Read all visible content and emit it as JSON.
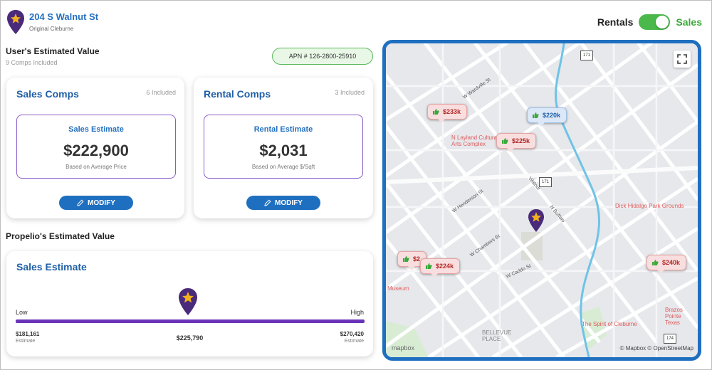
{
  "header": {
    "address": "204 S Walnut St",
    "subtitle": "Original Cleburne"
  },
  "toggle": {
    "left_label": "Rentals",
    "right_label": "Sales",
    "state": "sales"
  },
  "user_estimate": {
    "title": "User's Estimated Value",
    "comps_included": "9 Comps Included",
    "apn": "APN # 126-2800-25910"
  },
  "sales_comps": {
    "title": "Sales Comps",
    "count": "6 Included",
    "estimate_label": "Sales Estimate",
    "estimate_value": "$222,900",
    "basis": "Based on Average Price",
    "modify_label": "MODIFY"
  },
  "rental_comps": {
    "title": "Rental Comps",
    "count": "3 Included",
    "estimate_label": "Rental Estimate",
    "estimate_value": "$2,031",
    "basis": "Based on Average $/Sqft",
    "modify_label": "MODIFY"
  },
  "propelio": {
    "title": "Propelio's Estimated Value",
    "card_title": "Sales Estimate",
    "low_label": "Low",
    "high_label": "High",
    "low_value": "$181,161",
    "low_sub": "Estimate",
    "mid_value": "$225,790",
    "high_value": "$270,420",
    "high_sub": "Estimate"
  },
  "map": {
    "markers": [
      {
        "label": "$233k",
        "type": "sale"
      },
      {
        "label": "$220k",
        "type": "rent"
      },
      {
        "label": "$225k",
        "type": "sale"
      },
      {
        "label": "$2",
        "type": "sale"
      },
      {
        "label": "$224k",
        "type": "sale"
      },
      {
        "label": "$240k",
        "type": "sale"
      }
    ],
    "labels": {
      "arts": "N Layland Cultural Arts Complex",
      "park": "Dick Hidalgo Park Grounds",
      "garden": "The Spirit of Cleburne",
      "place1": "BELLEVUE PLACE",
      "museum": "Museum",
      "right_label": "Brazos Pointe Texas"
    },
    "street_labels": [
      "W Henderson St",
      "W Wardville St",
      "W Chambers St",
      "N Buffalo",
      "Walnut",
      "W Caddo St"
    ],
    "shields": [
      "171",
      "171",
      "174"
    ],
    "attribution": "© Mapbox © OpenStreetMap",
    "logo": "mapbox"
  },
  "colors": {
    "accent_blue": "#1f6fc0",
    "purple": "#6b34b8",
    "green": "#4ab84a",
    "sale_marker": "#f8dede",
    "rent_marker": "#dce8f8"
  }
}
